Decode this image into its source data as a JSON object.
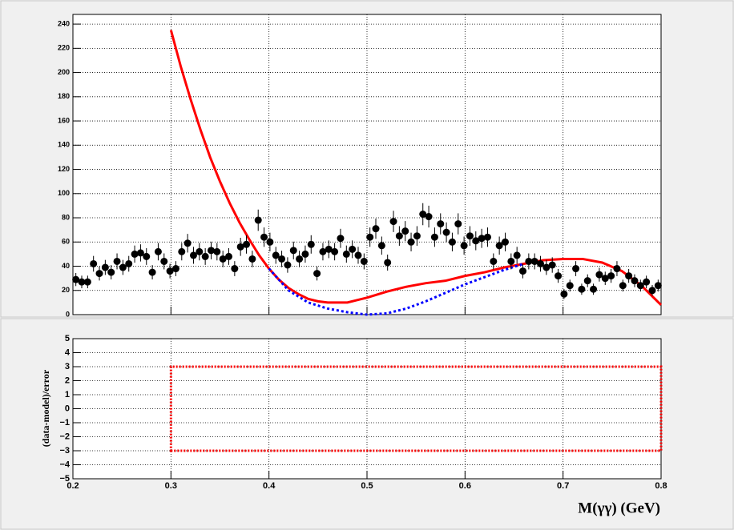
{
  "chart_data": [
    {
      "type": "scatter",
      "x": [
        0.203,
        0.209,
        0.215,
        0.221,
        0.227,
        0.233,
        0.239,
        0.245,
        0.251,
        0.257,
        0.263,
        0.269,
        0.275,
        0.281,
        0.287,
        0.293,
        0.299,
        0.305,
        0.311,
        0.317,
        0.323,
        0.329,
        0.335,
        0.341,
        0.347,
        0.353,
        0.359,
        0.365,
        0.371,
        0.377,
        0.383,
        0.389,
        0.395,
        0.401,
        0.407,
        0.413,
        0.419,
        0.425,
        0.431,
        0.437,
        0.443,
        0.449,
        0.455,
        0.461,
        0.467,
        0.473,
        0.479,
        0.485,
        0.491,
        0.497,
        0.503,
        0.509,
        0.515,
        0.521,
        0.527,
        0.533,
        0.539,
        0.545,
        0.551,
        0.557,
        0.563,
        0.569,
        0.575,
        0.581,
        0.587,
        0.593,
        0.599,
        0.605,
        0.611,
        0.617,
        0.623,
        0.629,
        0.635,
        0.641,
        0.647,
        0.653,
        0.659,
        0.665,
        0.671,
        0.677,
        0.683,
        0.689,
        0.695,
        0.701,
        0.707,
        0.713,
        0.719,
        0.725,
        0.731,
        0.737,
        0.743,
        0.749,
        0.755,
        0.761,
        0.767,
        0.773,
        0.779,
        0.785,
        0.791,
        0.797
      ],
      "values": [
        29,
        27,
        27,
        42,
        34,
        39,
        35,
        44,
        39,
        42,
        50,
        51,
        48,
        35,
        52,
        44,
        36,
        38,
        52,
        59,
        49,
        52,
        48,
        53,
        52,
        46,
        48,
        38,
        56,
        58,
        46,
        78,
        64,
        60,
        49,
        46,
        41,
        53,
        46,
        50,
        58,
        34,
        52,
        54,
        52,
        63,
        50,
        54,
        49,
        44,
        64,
        71,
        57,
        43,
        77,
        65,
        69,
        60,
        65,
        83,
        81,
        64,
        75,
        68,
        60,
        75,
        57,
        65,
        61,
        63,
        64,
        44,
        57,
        60,
        44,
        49,
        36,
        44,
        44,
        42,
        39,
        41,
        32,
        17,
        24,
        38,
        21,
        28,
        21,
        33,
        30,
        32,
        38,
        24,
        32,
        28,
        24,
        27,
        20,
        24
      ],
      "errors": [
        5.4,
        5.2,
        5.2,
        6.5,
        5.8,
        6.2,
        5.9,
        6.6,
        6.2,
        6.5,
        7.1,
        7.1,
        6.9,
        5.9,
        7.2,
        6.6,
        6,
        6.2,
        7.2,
        7.7,
        7,
        7.2,
        6.9,
        7.3,
        7.2,
        6.8,
        6.9,
        6.2,
        7.5,
        7.6,
        6.8,
        8.8,
        8,
        7.7,
        7,
        6.8,
        6.4,
        7.3,
        6.8,
        7.1,
        7.6,
        5.8,
        7.2,
        7.3,
        7.2,
        7.9,
        7.1,
        7.3,
        7,
        6.6,
        8,
        8.4,
        7.5,
        6.6,
        8.8,
        8.1,
        8.3,
        7.7,
        8.1,
        9.1,
        9,
        8,
        8.7,
        8.2,
        7.7,
        8.7,
        7.5,
        8.1,
        7.8,
        7.9,
        8,
        6.6,
        7.5,
        7.7,
        6.6,
        7,
        6,
        6.6,
        6.6,
        6.5,
        6.2,
        6.4,
        5.7,
        4.1,
        4.9,
        6.2,
        4.6,
        5.3,
        4.6,
        5.7,
        5.5,
        5.7,
        6.2,
        4.9,
        5.7,
        5.3,
        4.9,
        5.2,
        4.5,
        4.9
      ],
      "color": "#000000",
      "curves": [
        {
          "color": "#ff0000",
          "style": "solid",
          "x": [
            0.3,
            0.31,
            0.32,
            0.33,
            0.34,
            0.35,
            0.36,
            0.37,
            0.38,
            0.39,
            0.4,
            0.41,
            0.42,
            0.43,
            0.44,
            0.45,
            0.46,
            0.47,
            0.48,
            0.49,
            0.5,
            0.52,
            0.54,
            0.56,
            0.58,
            0.6,
            0.62,
            0.64,
            0.66,
            0.68,
            0.7,
            0.72,
            0.74,
            0.76,
            0.78,
            0.8
          ],
          "values": [
            235,
            205,
            178,
            153,
            130,
            110,
            92,
            76,
            62,
            49,
            38,
            29,
            22,
            17,
            13,
            11,
            10,
            10,
            10,
            12,
            14,
            19,
            23,
            26,
            28,
            32,
            35,
            39,
            42,
            45,
            46,
            46,
            43,
            36,
            24,
            8
          ]
        },
        {
          "color": "#0000ff",
          "style": "dotted",
          "x": [
            0.4,
            0.41,
            0.42,
            0.44,
            0.46,
            0.48,
            0.5,
            0.52,
            0.54,
            0.56,
            0.58,
            0.6,
            0.62,
            0.64,
            0.66
          ],
          "values": [
            38,
            29,
            20,
            10,
            5,
            2,
            0,
            1,
            5,
            11,
            18,
            25,
            31,
            37,
            42
          ]
        }
      ],
      "xlim": [
        0.2,
        0.8
      ],
      "ylim": [
        0,
        248
      ],
      "xticks": [
        0.2,
        0.3,
        0.4,
        0.5,
        0.6,
        0.7,
        0.8
      ],
      "yticks": [
        0,
        20,
        40,
        60,
        80,
        100,
        120,
        140,
        160,
        180,
        200,
        220,
        240
      ],
      "grid": true
    },
    {
      "type": "residual",
      "xlabel": "M(γγ) (GeV)",
      "ylabel": "(data-model)/error",
      "xlim": [
        0.2,
        0.8
      ],
      "ylim": [
        -5,
        5
      ],
      "xticks": [
        0.2,
        0.3,
        0.4,
        0.5,
        0.6,
        0.7,
        0.8
      ],
      "yticks": [
        {
          "value": -5,
          "label": "−5"
        },
        {
          "value": -4,
          "label": "−4"
        },
        {
          "value": -3,
          "label": "−3"
        },
        {
          "value": -2,
          "label": "−2"
        },
        {
          "value": -1,
          "label": "−1"
        },
        0,
        1,
        2,
        3,
        4,
        5
      ],
      "band": {
        "x": [
          0.3,
          0.8
        ],
        "values": [
          -3,
          3
        ],
        "color": "#ff0000"
      },
      "grid": true
    }
  ]
}
